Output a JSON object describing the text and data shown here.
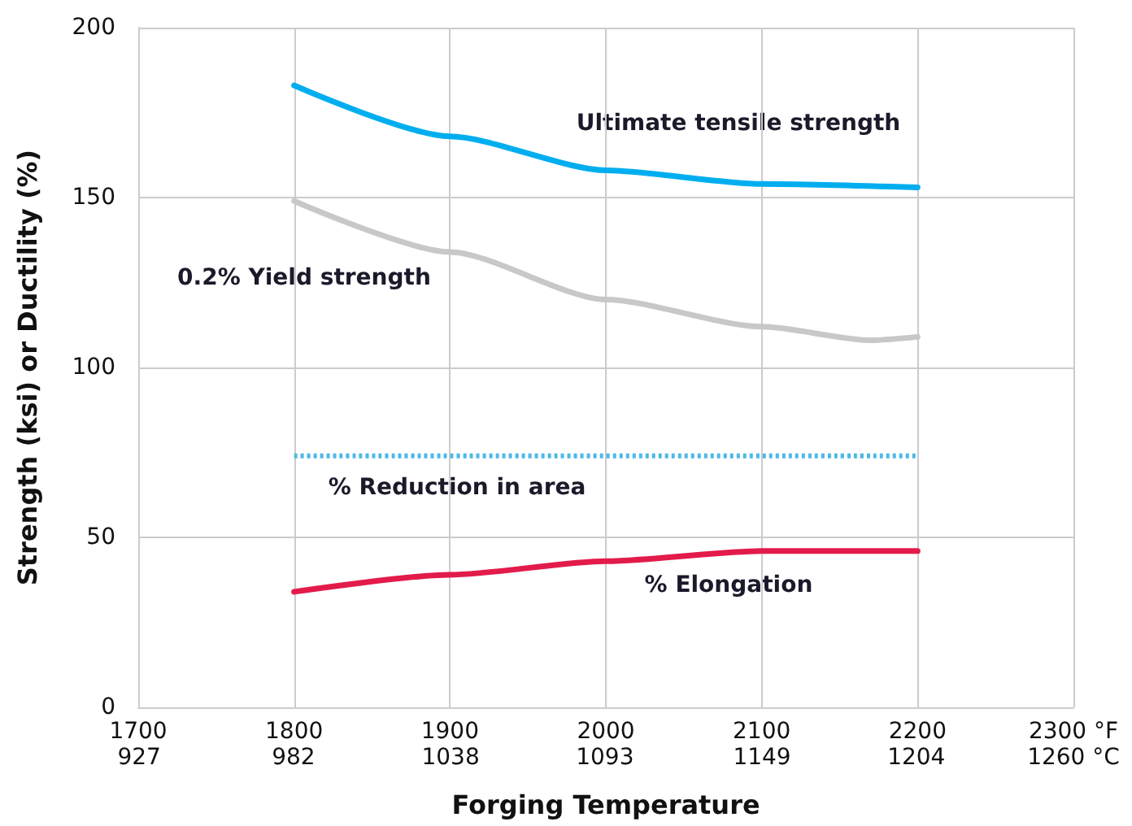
{
  "chart_data": {
    "type": "line",
    "xlabel": "Forging Temperature",
    "ylabel": "Strength (ksi) or Ductility (%)",
    "xlim": [
      1700,
      2300
    ],
    "xticks": [
      1700,
      1800,
      1900,
      2000,
      2100,
      2200,
      {
        "value": 2300,
        "label": "2300 °F"
      }
    ],
    "x2lim": [
      926.67,
      1260
    ],
    "x2ticks": [
      927,
      982,
      1038,
      1093,
      1149,
      1204,
      {
        "value": 1260,
        "label": "1260 °C"
      }
    ],
    "ylim": [
      0,
      200
    ],
    "yticks": [
      0,
      50,
      100,
      150,
      200
    ],
    "grid": true,
    "marker": "none",
    "series": [
      {
        "name": "Ultimate tensile strength",
        "color": "#00aeef",
        "x": [
          1800,
          1900,
          2000,
          2100,
          2200
        ],
        "values": [
          183,
          168,
          158,
          154,
          153
        ]
      },
      {
        "name": "0.2% Yield strength",
        "color": "#c8c8c8",
        "x": [
          1800,
          1900,
          2000,
          2100,
          2170,
          2200
        ],
        "values": [
          149,
          134,
          120,
          112,
          108,
          109
        ]
      },
      {
        "name": "% Reduction in area",
        "color": "#4db8e8",
        "line_style": "dotted",
        "x": [
          1800,
          2200
        ],
        "values": [
          74,
          74
        ]
      },
      {
        "name": "% Elongation",
        "color": "#e31b4b",
        "x": [
          1800,
          1900,
          2000,
          2100,
          2200
        ],
        "values": [
          34,
          39,
          43,
          46,
          46
        ]
      }
    ]
  }
}
